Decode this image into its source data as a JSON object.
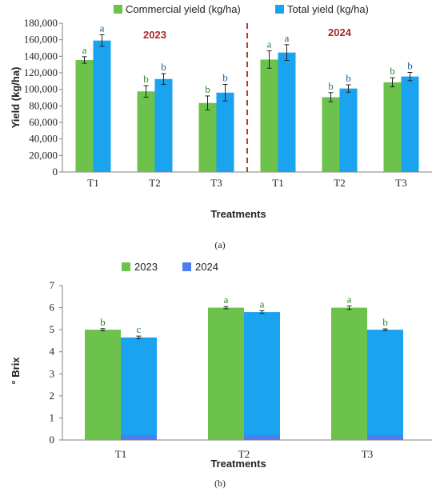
{
  "colors": {
    "green": "#6cc24a",
    "blue": "#1aa3ef",
    "legend_blue2": "#4f7cf0",
    "axis": "#808080",
    "divider": "#c0392b",
    "year_label": "#a52a2a",
    "letter_green": "#2e7d32"
  },
  "chart_data": [
    {
      "type": "bar",
      "caption": "(a)",
      "xlabel": "Treatments",
      "ylabel": "Yield (kg/ha)",
      "ylim": [
        0,
        180000
      ],
      "yticks": [
        "0",
        "20,000",
        "40,000",
        "60,000",
        "80,000",
        "100,000",
        "120,000",
        "140,000",
        "160,000",
        "180,000"
      ],
      "legend": [
        "Commercial yield (kg/ha)",
        "Total yield (kg/ha)"
      ],
      "groups": [
        "2023",
        "2024"
      ],
      "categories": [
        "T1",
        "T2",
        "T3",
        "T1",
        "T2",
        "T3"
      ],
      "series": [
        {
          "name": "Commercial yield (kg/ha)",
          "values": [
            135500,
            97500,
            83500,
            136000,
            90500,
            108500
          ],
          "errors": [
            4000,
            7000,
            8500,
            10500,
            5500,
            5500
          ],
          "letters": [
            "a",
            "b",
            "b",
            "a",
            "b",
            "b"
          ]
        },
        {
          "name": "Total yield (kg/ha)",
          "values": [
            159000,
            112500,
            96000,
            144500,
            101000,
            115500
          ],
          "errors": [
            7000,
            6500,
            10000,
            9500,
            4500,
            5000
          ],
          "letters": [
            "a",
            "b",
            "b",
            "a",
            "b",
            "b"
          ]
        }
      ]
    },
    {
      "type": "bar",
      "caption": "(b)",
      "xlabel": "Treatments",
      "ylabel": "° Brix",
      "ylim": [
        0,
        7
      ],
      "yticks": [
        "0",
        "1",
        "2",
        "3",
        "4",
        "5",
        "6",
        "7"
      ],
      "legend": [
        "2023",
        "2024"
      ],
      "categories": [
        "T1",
        "T2",
        "T3"
      ],
      "series": [
        {
          "name": "2023",
          "values": [
            5.0,
            6.0,
            6.0
          ],
          "errors": [
            0.05,
            0.05,
            0.08
          ],
          "letters": [
            "b",
            "a",
            "a"
          ]
        },
        {
          "name": "2024",
          "values": [
            4.65,
            5.8,
            5.0
          ],
          "errors": [
            0.06,
            0.06,
            0.04
          ],
          "letters": [
            "c",
            "a",
            "b"
          ]
        }
      ]
    }
  ]
}
